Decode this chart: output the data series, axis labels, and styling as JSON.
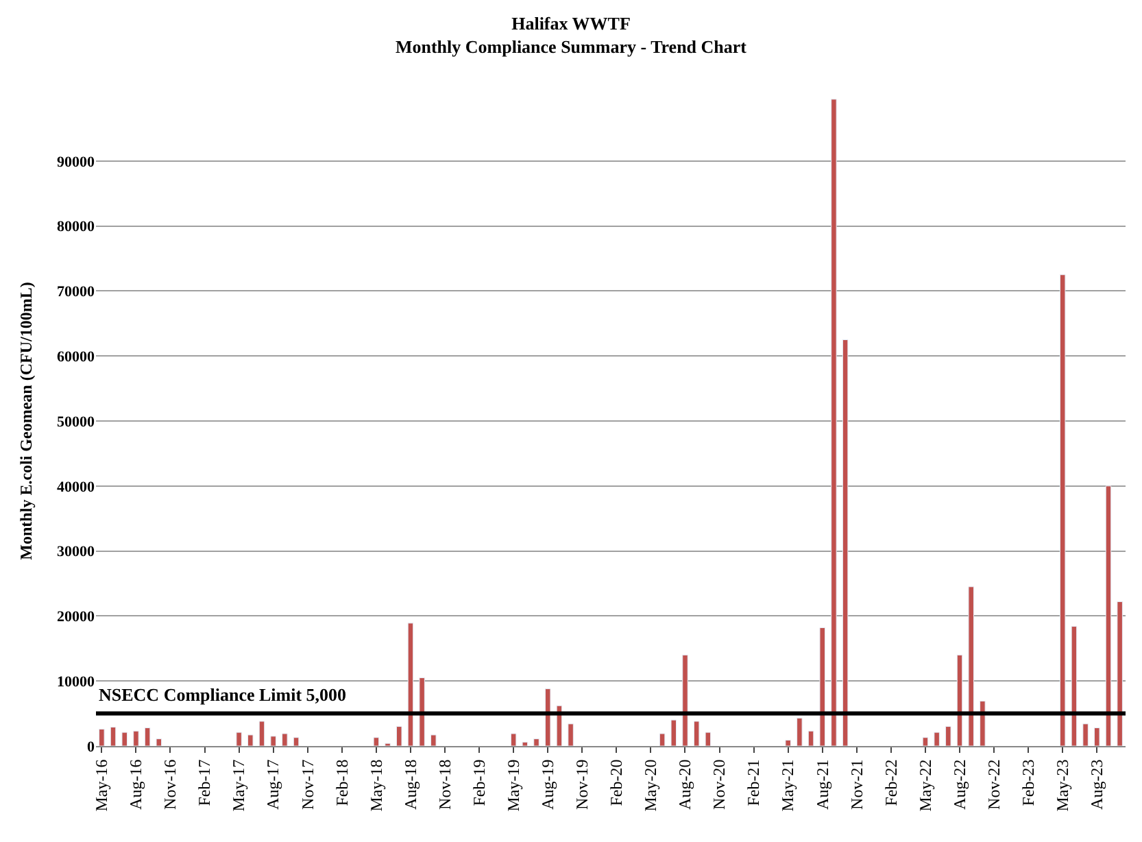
{
  "chart_data": {
    "type": "bar",
    "title": "Halifax WWTF",
    "subtitle": "Monthly Compliance Summary - Trend Chart",
    "ylabel": "Monthly E.coli Geomean (CFU/100mL)",
    "categories": [
      "May-16",
      null,
      null,
      "Aug-16",
      null,
      null,
      "Nov-16",
      null,
      null,
      "Feb-17",
      null,
      null,
      "May-17",
      null,
      null,
      "Aug-17",
      null,
      null,
      "Nov-17",
      null,
      null,
      "Feb-18",
      null,
      null,
      "May-18",
      null,
      null,
      "Aug-18",
      null,
      null,
      "Nov-18",
      null,
      null,
      "Feb-19",
      null,
      null,
      "May-19",
      null,
      null,
      "Aug-19",
      null,
      null,
      "Nov-19",
      null,
      null,
      "Feb-20",
      null,
      null,
      "May-20",
      null,
      null,
      "Aug-20",
      null,
      null,
      "Nov-20",
      null,
      null,
      "Feb-21",
      null,
      null,
      "May-21",
      null,
      null,
      "Aug-21",
      null,
      null,
      "Nov-21",
      null,
      null,
      "Feb-22",
      null,
      null,
      "May-22",
      null,
      null,
      "Aug-22",
      null,
      null,
      "Nov-22",
      null,
      null,
      "Feb-23",
      null,
      null,
      "May-23",
      null,
      null,
      "Aug-23",
      null,
      null
    ],
    "values": [
      2600,
      2900,
      2100,
      2300,
      2800,
      1100,
      null,
      null,
      null,
      null,
      null,
      null,
      2100,
      1700,
      3800,
      1500,
      1900,
      1300,
      null,
      null,
      null,
      null,
      null,
      null,
      1300,
      400,
      3000,
      18900,
      10500,
      1700,
      null,
      null,
      null,
      null,
      null,
      null,
      1900,
      600,
      1100,
      8800,
      6200,
      3400,
      null,
      null,
      null,
      null,
      null,
      null,
      null,
      1900,
      4000,
      14000,
      3800,
      2100,
      null,
      null,
      null,
      null,
      null,
      null,
      900,
      4300,
      2300,
      18200,
      99500,
      62500,
      null,
      null,
      null,
      null,
      null,
      null,
      1300,
      2100,
      3000,
      14000,
      24500,
      6900,
      null,
      null,
      null,
      null,
      null,
      null,
      72500,
      18400,
      3400,
      2800,
      40000,
      22200
    ],
    "color": "#c0504d",
    "ylim": [
      0,
      100000
    ],
    "yticks": [
      0,
      10000,
      20000,
      30000,
      40000,
      50000,
      60000,
      70000,
      80000,
      90000
    ],
    "grid": "y",
    "ref_lines": [
      {
        "axis": "y",
        "value": 5000,
        "label": "NSECC Compliance Limit 5,000",
        "color": "#000000"
      }
    ]
  }
}
